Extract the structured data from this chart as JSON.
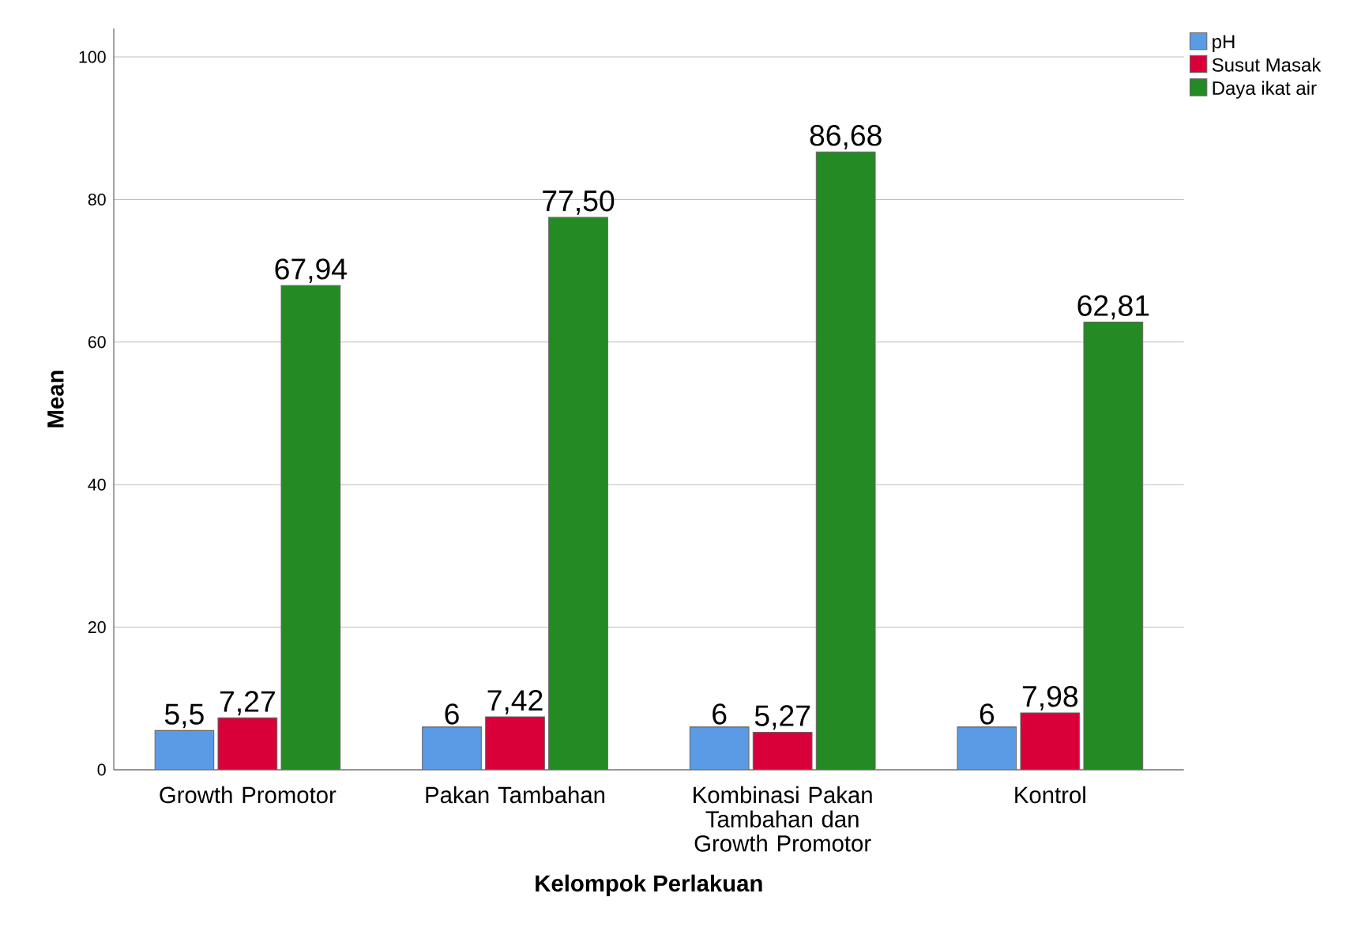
{
  "chart_data": {
    "type": "bar",
    "xlabel": "Kelompok Perlakuan",
    "ylabel": "Mean",
    "categories": [
      "Growth Promotor",
      "Pakan Tambahan",
      "Kombinasi Pakan Tambahan dan Growth Promotor",
      "Kontrol"
    ],
    "series": [
      {
        "name": "pH",
        "color": "#5b9be6",
        "values": [
          5.5,
          6,
          6,
          6
        ],
        "value_labels": [
          "5,5",
          "6",
          "6",
          "6"
        ]
      },
      {
        "name": "Susut Masak",
        "color": "#d9003a",
        "values": [
          7.27,
          7.42,
          5.27,
          7.98
        ],
        "value_labels": [
          "7,27",
          "7,42",
          "5,27",
          "7,98"
        ]
      },
      {
        "name": "Daya ikat air",
        "color": "#248a24",
        "values": [
          67.94,
          77.5,
          86.68,
          62.81
        ],
        "value_labels": [
          "67,94",
          "77,50",
          "86,68",
          "62,81"
        ]
      }
    ],
    "ylim": [
      0,
      104
    ],
    "yticks": [
      0,
      20,
      40,
      60,
      80,
      100
    ],
    "grid": "y",
    "legend": "top right"
  }
}
